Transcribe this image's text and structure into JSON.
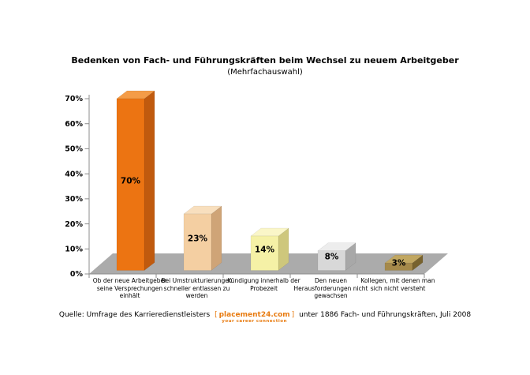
{
  "chart_data": {
    "type": "bar",
    "style": "3d-column",
    "title": "Bedenken von Fach- und Führungskräften beim Wechsel zu neuem Arbeitgeber",
    "subtitle": "(Mehrfachauswahl)",
    "categories": [
      [
        "Ob der neue Arbeitgeber",
        "seine Versprechungen",
        "einhält"
      ],
      [
        "Bei Umstrukturierungen",
        "schneller entlassen zu",
        "werden"
      ],
      [
        "Kündigung innerhalb der",
        "Probezeit"
      ],
      [
        "Den neuen",
        "Herausforderungen nicht",
        "gewachsen"
      ],
      [
        "Kollegen, mit denen man",
        "sich nicht versteht"
      ]
    ],
    "values": [
      70,
      23,
      14,
      8,
      3
    ],
    "value_labels": [
      "70%",
      "23%",
      "14%",
      "8%",
      "3%"
    ],
    "y_tick_labels": [
      "0%",
      "10%",
      "20%",
      "30%",
      "40%",
      "50%",
      "60%",
      "70%"
    ],
    "ylim": [
      0,
      70
    ],
    "grid": false,
    "legend": false,
    "bar_colors": [
      {
        "front": "#EC7412",
        "side": "#C05A0E",
        "top": "#F49C47"
      },
      {
        "front": "#F4CFA2",
        "side": "#CFA477",
        "top": "#F8DFBE"
      },
      {
        "front": "#F5F1A6",
        "side": "#CEC77C",
        "top": "#FAF6C8"
      },
      {
        "front": "#D8D8D8",
        "side": "#A8A8A8",
        "top": "#EDEDED"
      },
      {
        "front": "#A5894A",
        "side": "#77622E",
        "top": "#C1A761"
      }
    ],
    "floor_color": "#ABABAB",
    "axis_color": "#8C8C8C",
    "text_color": "#000000"
  },
  "source": {
    "prefix": "Quelle: Umfrage des Karrieredienstleisters",
    "bracket_open": "[",
    "logo": "placement24.com",
    "bracket_close": "]",
    "suffix": "unter 1886 Fach- und Führungskräften, Juli 2008",
    "tagline": "your career connection",
    "logo_color": "#E87B10"
  }
}
